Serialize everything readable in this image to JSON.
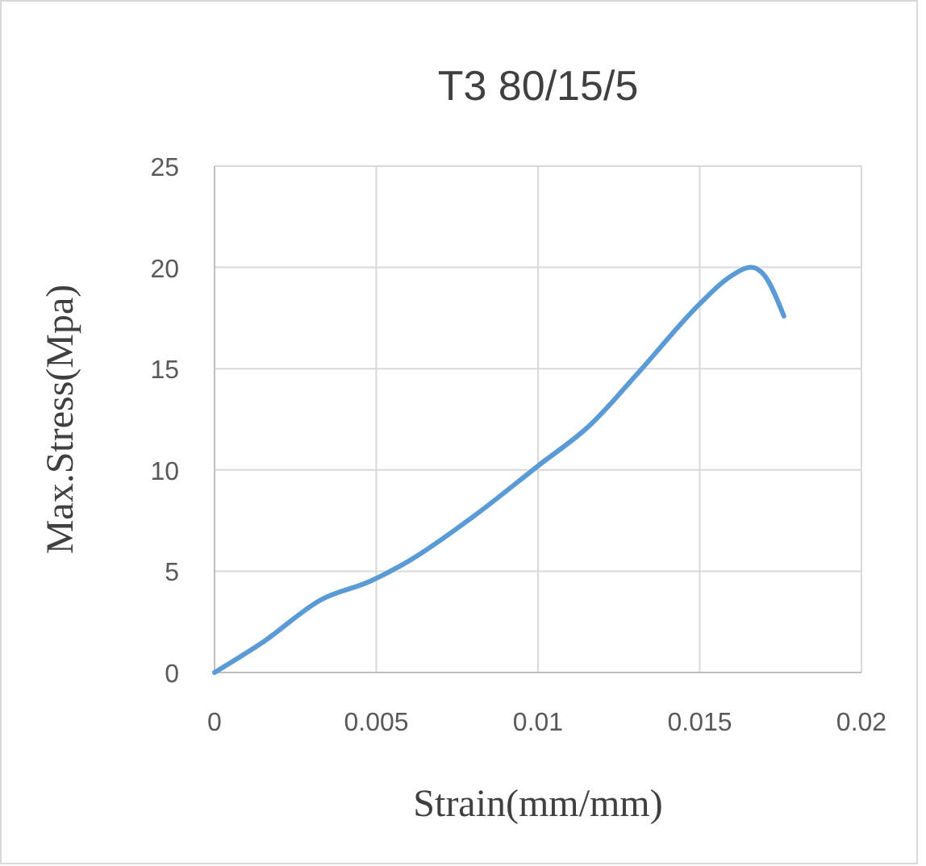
{
  "chart_data": {
    "type": "line",
    "title": "T3 80/15/5",
    "xlabel": "Strain(mm/mm)",
    "ylabel": "Max.Stress(Mpa)",
    "x": [
      0,
      0.0015,
      0.0033,
      0.0048,
      0.006,
      0.008,
      0.01,
      0.0116,
      0.0131,
      0.015,
      0.0159,
      0.0166,
      0.017,
      0.0176
    ],
    "series": [
      {
        "color": "#5b9bd5",
        "values": [
          0,
          1.5,
          3.6,
          4.5,
          5.5,
          7.7,
          10.2,
          12.2,
          14.8,
          18.2,
          19.5,
          20,
          19.6,
          17.6
        ]
      }
    ],
    "xlim": [
      0,
      0.02
    ],
    "xticks": [
      0,
      0.005,
      0.01,
      0.015,
      0.02
    ],
    "ylim": [
      0,
      25
    ],
    "yticks": [
      0,
      5,
      10,
      15,
      20,
      25
    ],
    "grid": true,
    "marker": "none",
    "line_style": "solid"
  }
}
